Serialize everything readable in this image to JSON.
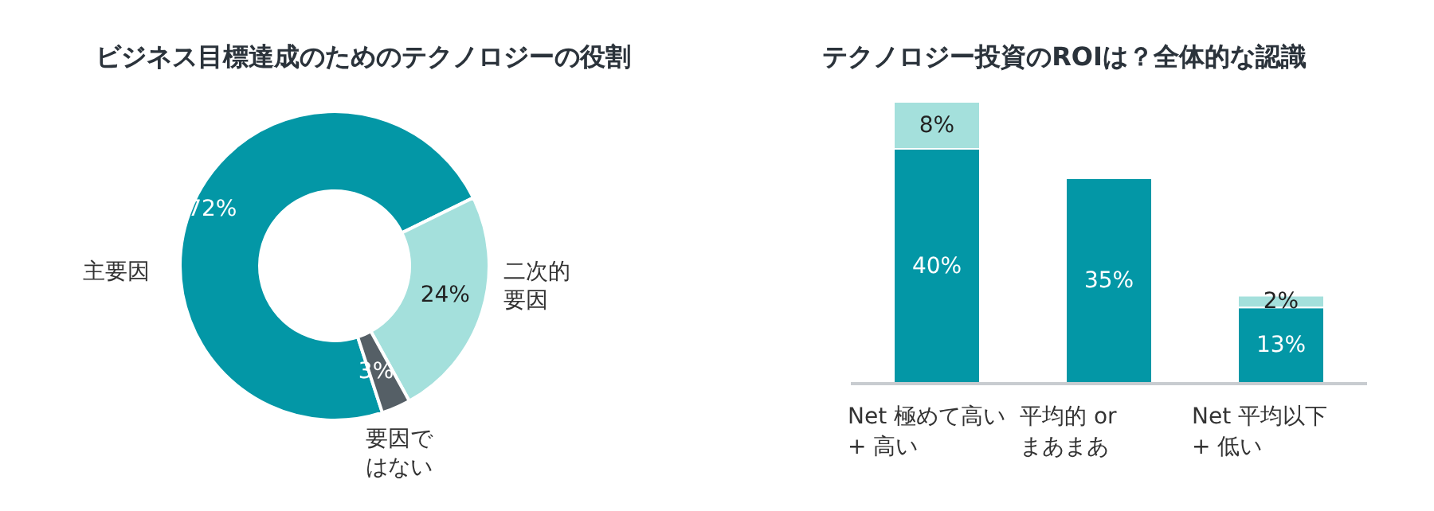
{
  "chart_data": [
    {
      "type": "donut",
      "title": "ビジネス目標達成のためのテクノロジーの役割",
      "categories": [
        "主要因",
        "二次的要因",
        "要因ではない"
      ],
      "values": [
        72,
        24,
        3
      ],
      "colors": [
        "#0397a6",
        "#a4e0dc",
        "#555f66"
      ],
      "value_labels": [
        "72%",
        "24%",
        "3%"
      ]
    },
    {
      "type": "bar",
      "title": "テクノロジー投資のROIは？全体的な認識",
      "stacked": true,
      "categories": [
        "Net 極めて高い\n+ 高い",
        "平均的 or\nまあまあ",
        "Net 平均以下\n+ 低い"
      ],
      "series": [
        {
          "color": "#0397a6",
          "values": [
            40,
            35,
            13
          ],
          "value_labels": [
            "40%",
            "35%",
            "13%"
          ]
        },
        {
          "color": "#a4e0dc",
          "values": [
            8,
            null,
            2
          ],
          "value_labels": [
            "8%",
            null,
            "2%"
          ]
        }
      ]
    }
  ]
}
